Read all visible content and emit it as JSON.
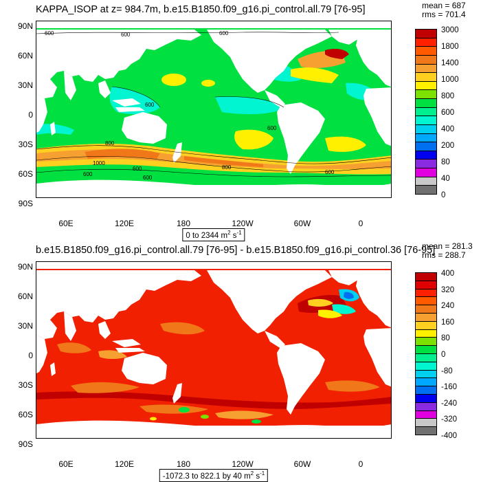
{
  "panels": [
    {
      "id": "top",
      "title": "KAPPA_ISOP at z= 984.7m, b.e15.B1850.f09_g16.pi_control.all.79 [76-95]",
      "stats": {
        "mean": "mean = 687",
        "rms": "rms = 701.4"
      },
      "range_label": "0 to 2344",
      "units": "m",
      "units_sup": "2",
      "units_tail": " s",
      "units_sup2": "-1",
      "background_color": "#00e040",
      "colorbar": {
        "labels": [
          "3000",
          "1800",
          "1400",
          "1000",
          "800",
          "600",
          "400",
          "200",
          "80",
          "40",
          "0"
        ],
        "colors": [
          "#c00000",
          "#ff2000",
          "#ff5a00",
          "#f07818",
          "#f5a030",
          "#ffd020",
          "#fff000",
          "#7ce000",
          "#00e040",
          "#00f090",
          "#00f5d0",
          "#00d0f0",
          "#00a8ff",
          "#0070f0",
          "#0000f0",
          "#8a2be2",
          "#e000e0",
          "#c8c8c8",
          "#707070"
        ]
      },
      "contour_labels": [
        "600",
        "600",
        "600",
        "600",
        "600",
        "800",
        "1000",
        "600",
        "800",
        "600",
        "600",
        "600"
      ]
    },
    {
      "id": "bottom",
      "title": "b.e15.B1850.f09_g16.pi_control.all.79 [76-95] - b.e15.B1850.f09_g16.pi_control.36 [76-95]",
      "stats": {
        "mean": "mean = 281.3",
        "rms": "rms = 288.7"
      },
      "range_label": "-1072.3 to 822.1 by 40",
      "units": "m",
      "units_sup": "2",
      "units_tail": " s",
      "units_sup2": "-1",
      "background_color": "#f02000",
      "colorbar": {
        "labels": [
          "400",
          "320",
          "240",
          "160",
          "80",
          "0",
          "-80",
          "-160",
          "-240",
          "-320",
          "-400"
        ],
        "colors": [
          "#c00000",
          "#e00000",
          "#ff2000",
          "#ff5a00",
          "#f07818",
          "#f5a030",
          "#ffd020",
          "#fff000",
          "#7ce000",
          "#00e040",
          "#00f090",
          "#00f5d0",
          "#00d0f0",
          "#00a8ff",
          "#0070f0",
          "#0000f0",
          "#8a2be2",
          "#e000e0",
          "#c8c8c8",
          "#707070"
        ]
      }
    }
  ],
  "axes": {
    "lat_labels": [
      "90N",
      "60N",
      "30N",
      "0",
      "30S",
      "60S",
      "90S"
    ],
    "lon_labels": [
      "60E",
      "120E",
      "180",
      "120W",
      "60W",
      "0"
    ]
  }
}
